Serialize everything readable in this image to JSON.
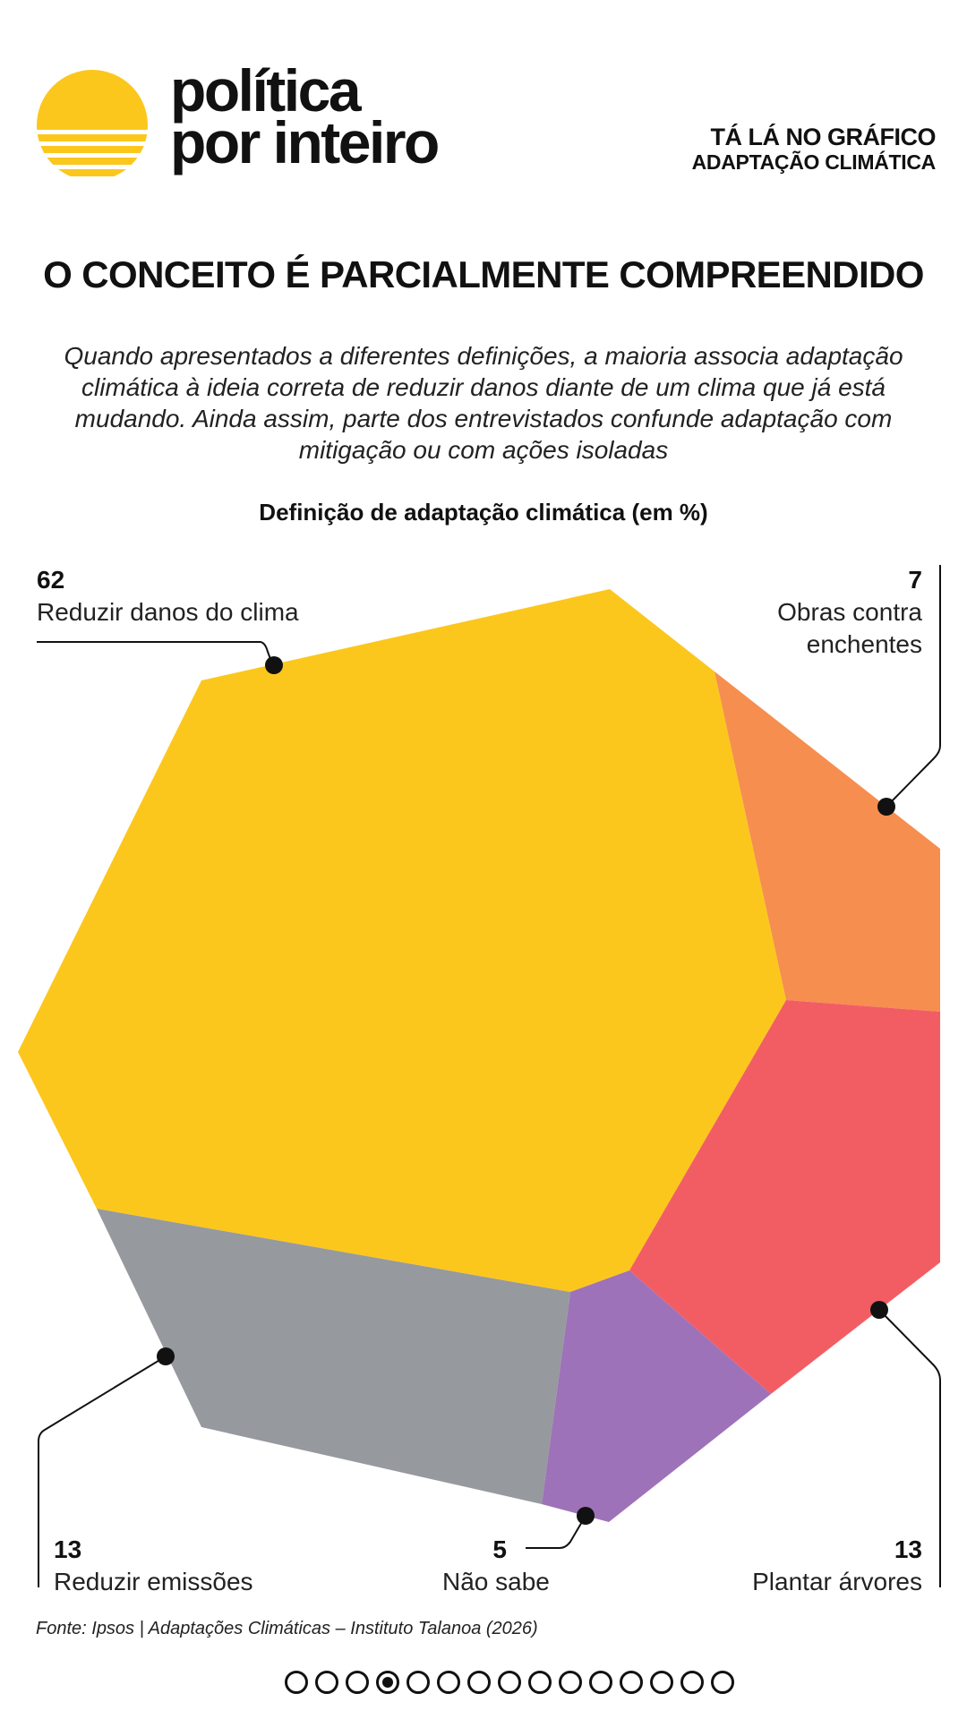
{
  "brand": {
    "line1": "política",
    "line2": "por inteiro",
    "logo_color": "#FCC71D",
    "logo_icon": "sun-logo-icon"
  },
  "header": {
    "series": "TÁ LÁ NO GRÁFICO",
    "topic": "ADAPTAÇÃO CLIMÁTICA"
  },
  "title": "O CONCEITO É PARCIALMENTE COMPREENDIDO",
  "subtitle": "Quando apresentados a diferentes definições, a maioria associa adaptação climática à ideia correta de reduzir danos diante de um clima que já está mudando. Ainda assim, parte dos entrevistados confunde adaptação com mitigação ou com ações isoladas",
  "chart_data": {
    "type": "voronoi-treemap",
    "title": "Definição de adaptação climática (em %)",
    "unit": "%",
    "categories": [
      "Reduzir danos do clima",
      "Obras contra enchentes",
      "Plantar árvores",
      "Não sabe",
      "Reduzir emissões"
    ],
    "values": [
      62,
      7,
      13,
      5,
      13
    ],
    "colors": [
      "#FCC71D",
      "#F68E4F",
      "#F25D64",
      "#9E72B8",
      "#96999E"
    ]
  },
  "labels": {
    "l0_value": "62",
    "l0_text": "Reduzir danos do clima",
    "l1_value": "7",
    "l1_text": "Obras contra enchentes",
    "l2_value": "13",
    "l2_text": "Plantar árvores",
    "l3_value": "5",
    "l3_text": "Não sabe",
    "l4_value": "13",
    "l4_text": "Reduzir emissões"
  },
  "source": "Fonte: Ipsos | Adaptações Climáticas – Instituto Talanoa (2026)",
  "pagination": {
    "total": 15,
    "current": 4
  }
}
